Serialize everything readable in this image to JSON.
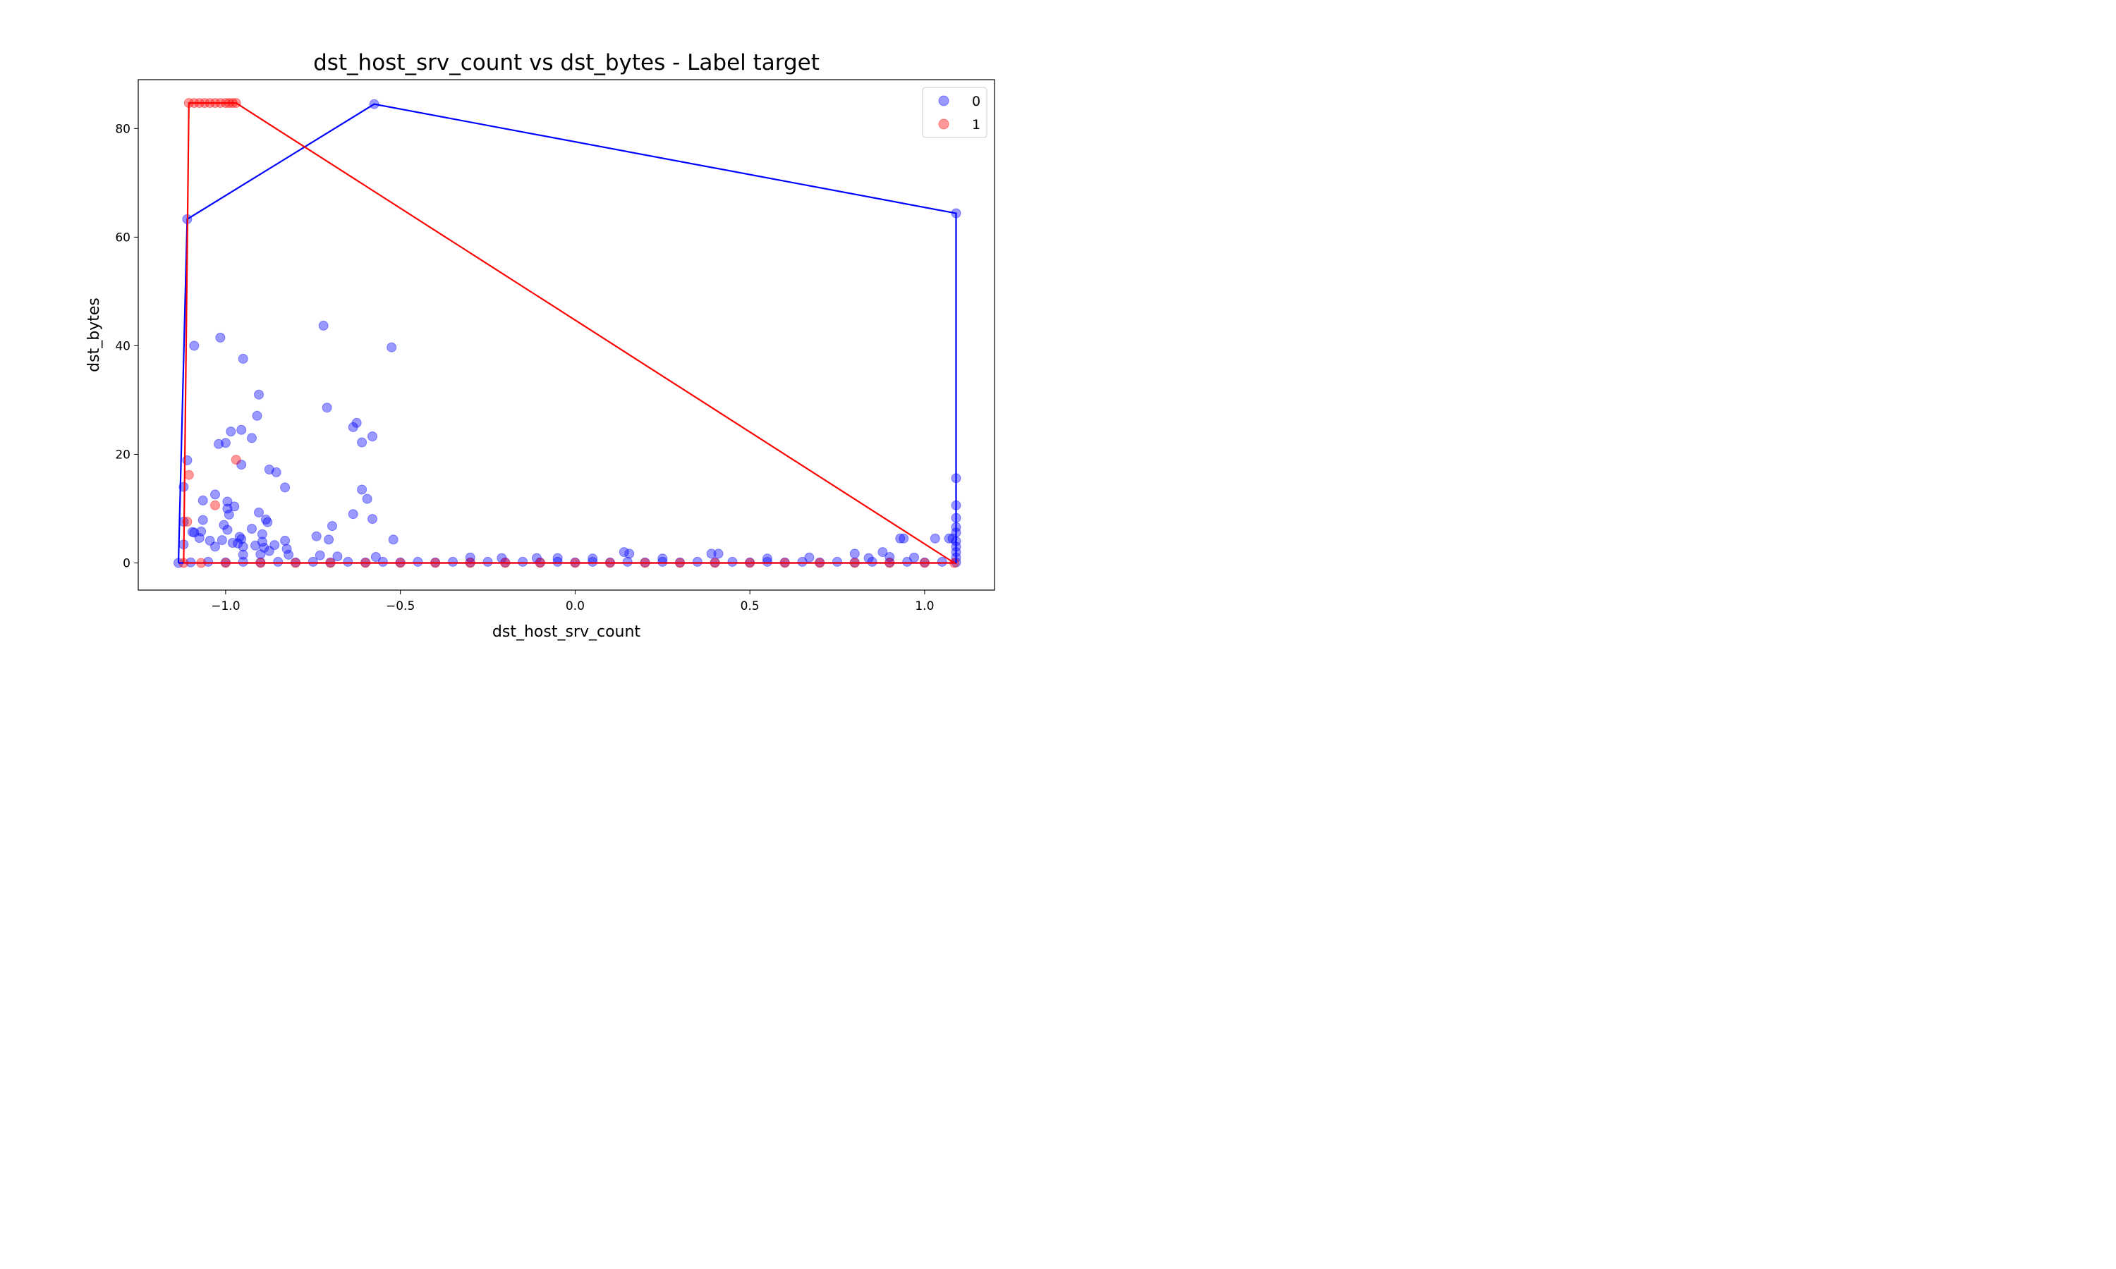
{
  "chart_data": {
    "type": "scatter",
    "title": "dst_host_srv_count vs dst_bytes - Label target",
    "xlabel": "dst_host_srv_count",
    "ylabel": "dst_bytes",
    "xlim": [
      -1.25,
      1.2
    ],
    "ylim": [
      -5,
      89
    ],
    "xticks": [
      -1.0,
      -0.5,
      0.0,
      0.5,
      1.0
    ],
    "xtick_labels": [
      "−1.0",
      "−0.5",
      "0.0",
      "0.5",
      "1.0"
    ],
    "yticks": [
      0,
      20,
      40,
      60,
      80
    ],
    "ytick_labels": [
      "0",
      "20",
      "40",
      "60",
      "80"
    ],
    "grid": false,
    "legend_position": "top-right",
    "series": [
      {
        "name": "0",
        "color": "#0000ff",
        "points": [
          [
            -0.575,
            84.5
          ],
          [
            -1.11,
            63.3
          ],
          [
            1.09,
            64.4
          ],
          [
            -0.72,
            43.7
          ],
          [
            -1.015,
            41.5
          ],
          [
            -1.09,
            40.0
          ],
          [
            -0.525,
            39.7
          ],
          [
            -0.95,
            37.6
          ],
          [
            -0.905,
            31.0
          ],
          [
            -0.71,
            28.6
          ],
          [
            -0.91,
            27.1
          ],
          [
            -0.635,
            25.0
          ],
          [
            -0.625,
            25.8
          ],
          [
            -0.955,
            24.5
          ],
          [
            -0.985,
            24.2
          ],
          [
            -0.58,
            23.3
          ],
          [
            -0.925,
            23.0
          ],
          [
            -1.0,
            22.1
          ],
          [
            -1.02,
            21.9
          ],
          [
            -0.61,
            22.2
          ],
          [
            -1.11,
            18.9
          ],
          [
            -0.955,
            18.1
          ],
          [
            -0.875,
            17.2
          ],
          [
            -0.855,
            16.7
          ],
          [
            1.09,
            15.6
          ],
          [
            -1.12,
            14.0
          ],
          [
            -0.83,
            13.9
          ],
          [
            -0.61,
            13.5
          ],
          [
            -1.03,
            12.6
          ],
          [
            -0.595,
            11.8
          ],
          [
            -1.065,
            11.5
          ],
          [
            -0.995,
            11.3
          ],
          [
            -0.975,
            10.4
          ],
          [
            -0.995,
            10.0
          ],
          [
            1.09,
            10.6
          ],
          [
            -0.905,
            9.3
          ],
          [
            -0.635,
            9.0
          ],
          [
            -0.99,
            8.9
          ],
          [
            -0.885,
            8.0
          ],
          [
            -0.58,
            8.1
          ],
          [
            1.09,
            8.3
          ],
          [
            -1.065,
            7.9
          ],
          [
            -0.88,
            7.5
          ],
          [
            -1.12,
            7.6
          ],
          [
            -1.005,
            7.0
          ],
          [
            -0.695,
            6.8
          ],
          [
            -0.925,
            6.3
          ],
          [
            -0.995,
            6.1
          ],
          [
            -1.07,
            5.8
          ],
          [
            1.09,
            6.6
          ],
          [
            -1.095,
            5.7
          ],
          [
            -1.09,
            5.6
          ],
          [
            -0.895,
            5.3
          ],
          [
            1.09,
            5.6
          ],
          [
            -0.74,
            4.9
          ],
          [
            -0.96,
            4.8
          ],
          [
            -1.075,
            4.6
          ],
          [
            -0.705,
            4.3
          ],
          [
            -0.52,
            4.3
          ],
          [
            -0.955,
            4.4
          ],
          [
            0.93,
            4.5
          ],
          [
            0.94,
            4.5
          ],
          [
            1.03,
            4.5
          ],
          [
            1.07,
            4.5
          ],
          [
            1.08,
            4.5
          ],
          [
            -1.045,
            4.1
          ],
          [
            -1.01,
            4.2
          ],
          [
            -0.83,
            4.1
          ],
          [
            -0.895,
            3.9
          ],
          [
            -0.965,
            3.6
          ],
          [
            -0.98,
            3.7
          ],
          [
            -1.12,
            3.4
          ],
          [
            -0.915,
            3.2
          ],
          [
            -0.86,
            3.3
          ],
          [
            -1.03,
            3.0
          ],
          [
            -0.95,
            3.0
          ],
          [
            -0.89,
            2.8
          ],
          [
            -0.825,
            2.6
          ],
          [
            -0.875,
            2.2
          ],
          [
            0.14,
            2.0
          ],
          [
            0.155,
            1.7
          ],
          [
            0.39,
            1.7
          ],
          [
            0.41,
            1.7
          ],
          [
            0.8,
            1.7
          ],
          [
            0.88,
            2.0
          ],
          [
            -0.9,
            1.6
          ],
          [
            -0.82,
            1.5
          ],
          [
            -0.73,
            1.4
          ],
          [
            -0.95,
            1.5
          ],
          [
            -0.68,
            1.2
          ],
          [
            -0.57,
            1.1
          ],
          [
            -0.3,
            1.0
          ],
          [
            -0.21,
            0.9
          ],
          [
            -0.11,
            0.9
          ],
          [
            -0.05,
            0.9
          ],
          [
            0.05,
            0.8
          ],
          [
            0.25,
            0.8
          ],
          [
            0.55,
            0.8
          ],
          [
            0.67,
            1.0
          ],
          [
            0.84,
            0.9
          ],
          [
            0.9,
            1.1
          ],
          [
            0.97,
            1.0
          ],
          [
            -1.135,
            0.0
          ],
          [
            -1.1,
            0.1
          ],
          [
            -1.05,
            0.2
          ],
          [
            -1.0,
            0.1
          ],
          [
            -0.95,
            0.2
          ],
          [
            -0.9,
            0.1
          ],
          [
            -0.85,
            0.2
          ],
          [
            -0.8,
            0.1
          ],
          [
            -0.75,
            0.2
          ],
          [
            -0.7,
            0.1
          ],
          [
            -0.65,
            0.2
          ],
          [
            -0.6,
            0.1
          ],
          [
            -0.55,
            0.2
          ],
          [
            -0.5,
            0.1
          ],
          [
            -0.45,
            0.2
          ],
          [
            -0.4,
            0.1
          ],
          [
            -0.35,
            0.2
          ],
          [
            -0.3,
            0.1
          ],
          [
            -0.25,
            0.2
          ],
          [
            -0.2,
            0.1
          ],
          [
            -0.15,
            0.2
          ],
          [
            -0.1,
            0.1
          ],
          [
            -0.05,
            0.2
          ],
          [
            0.0,
            0.1
          ],
          [
            0.05,
            0.2
          ],
          [
            0.1,
            0.1
          ],
          [
            0.15,
            0.2
          ],
          [
            0.2,
            0.1
          ],
          [
            0.25,
            0.2
          ],
          [
            0.3,
            0.1
          ],
          [
            0.35,
            0.2
          ],
          [
            0.4,
            0.1
          ],
          [
            0.45,
            0.2
          ],
          [
            0.5,
            0.1
          ],
          [
            0.55,
            0.2
          ],
          [
            0.6,
            0.1
          ],
          [
            0.65,
            0.2
          ],
          [
            0.7,
            0.1
          ],
          [
            0.75,
            0.2
          ],
          [
            0.8,
            0.1
          ],
          [
            0.85,
            0.2
          ],
          [
            0.9,
            0.1
          ],
          [
            0.95,
            0.2
          ],
          [
            1.0,
            0.1
          ],
          [
            1.05,
            0.2
          ],
          [
            1.09,
            0.1
          ],
          [
            1.09,
            1.0
          ],
          [
            1.09,
            2.0
          ],
          [
            1.09,
            3.0
          ],
          [
            1.09,
            4.0
          ]
        ]
      },
      {
        "name": "1",
        "color": "#ff0000",
        "points": [
          [
            -1.105,
            84.7
          ],
          [
            -1.09,
            84.7
          ],
          [
            -1.075,
            84.7
          ],
          [
            -1.06,
            84.7
          ],
          [
            -1.045,
            84.7
          ],
          [
            -1.03,
            84.7
          ],
          [
            -1.015,
            84.7
          ],
          [
            -1.0,
            84.7
          ],
          [
            -0.99,
            84.7
          ],
          [
            -0.98,
            84.7
          ],
          [
            -0.97,
            84.7
          ],
          [
            -0.97,
            19.0
          ],
          [
            -1.105,
            16.2
          ],
          [
            -1.03,
            10.6
          ],
          [
            -1.11,
            7.6
          ],
          [
            -1.12,
            0.0
          ],
          [
            -1.07,
            0.0
          ],
          [
            -1.0,
            0.0
          ],
          [
            -0.9,
            0.0
          ],
          [
            -0.8,
            0.0
          ],
          [
            -0.7,
            0.0
          ],
          [
            -0.6,
            0.0
          ],
          [
            -0.5,
            0.0
          ],
          [
            -0.4,
            0.0
          ],
          [
            -0.3,
            0.0
          ],
          [
            -0.2,
            0.0
          ],
          [
            -0.1,
            0.0
          ],
          [
            0.0,
            0.0
          ],
          [
            0.1,
            0.0
          ],
          [
            0.2,
            0.0
          ],
          [
            0.3,
            0.0
          ],
          [
            0.4,
            0.0
          ],
          [
            0.5,
            0.0
          ],
          [
            0.6,
            0.0
          ],
          [
            0.7,
            0.0
          ],
          [
            0.8,
            0.0
          ],
          [
            0.9,
            0.0
          ],
          [
            1.0,
            0.0
          ],
          [
            1.085,
            0.0
          ]
        ]
      }
    ],
    "hulls": [
      {
        "series": "0",
        "color": "#0000ff",
        "points": [
          [
            -1.135,
            0.0
          ],
          [
            -1.11,
            63.3
          ],
          [
            -0.575,
            84.5
          ],
          [
            1.09,
            64.4
          ],
          [
            1.09,
            0.0
          ],
          [
            -1.135,
            0.0
          ]
        ]
      },
      {
        "series": "1",
        "color": "#ff0000",
        "points": [
          [
            -1.12,
            0.0
          ],
          [
            -1.105,
            84.7
          ],
          [
            -0.97,
            84.7
          ],
          [
            1.085,
            0.0
          ],
          [
            -1.12,
            0.0
          ]
        ]
      }
    ]
  }
}
